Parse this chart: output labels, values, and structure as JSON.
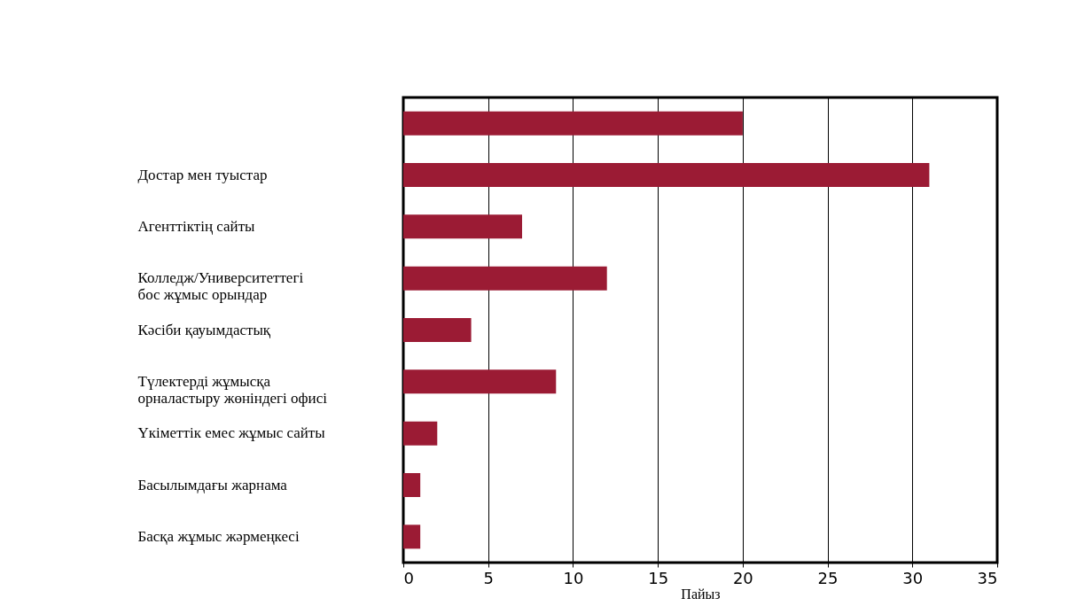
{
  "chart_data": {
    "type": "bar",
    "orientation": "horizontal",
    "xlabel": "Пайыз",
    "categories": [
      null,
      "Достар мен туыстар",
      "Агенттіктің сайты",
      "Колледж/Университеттегі\nбос жұмыс орындар",
      "Кәсіби қауымдастық",
      "Түлектерді жұмысқа\nорналастыру жөніндегі офисі",
      "Үкіметтік емес жұмыс сайты",
      "Басылымдағы жарнама",
      "Басқа жұмыс жәрмеңкесі"
    ],
    "values": [
      20,
      31,
      7,
      12,
      4,
      9,
      2,
      1,
      1
    ],
    "color": "#9b1b34",
    "xlim": [
      0,
      35
    ],
    "xticks": [
      0,
      5,
      10,
      15,
      20,
      25,
      30,
      35
    ],
    "grid": "x"
  }
}
